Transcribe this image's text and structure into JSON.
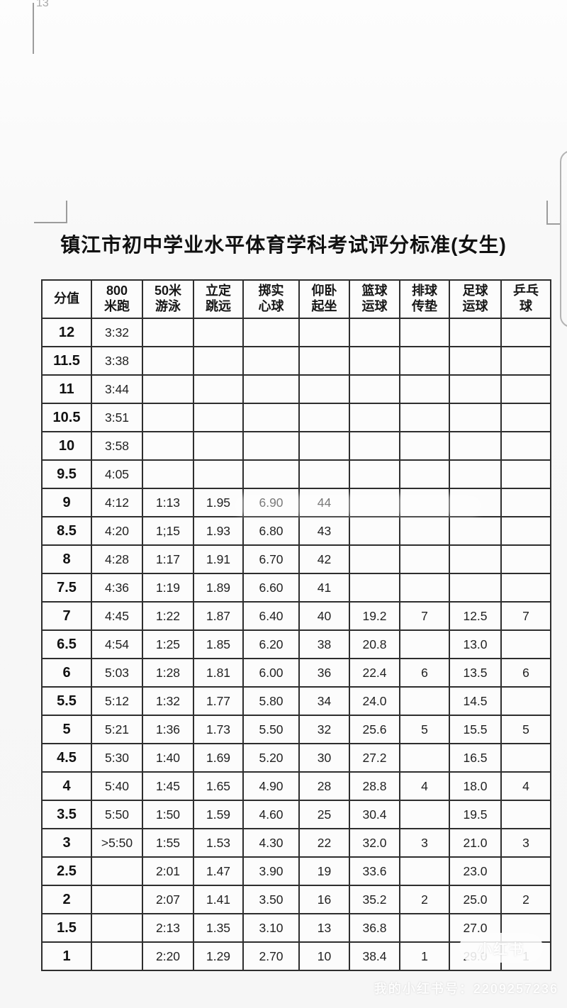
{
  "page": {
    "corner_label": "13",
    "title": "镇江市初中学业水平体育学科考试评分标准(女生)"
  },
  "table": {
    "columns": [
      "分值",
      "800\n米跑",
      "50米\n游泳",
      "立定\n跳远",
      "掷实\n心球",
      "仰卧\n起坐",
      "篮球\n运球",
      "排球\n传垫",
      "足球\n运球",
      "乒乓\n球"
    ],
    "rows": [
      [
        "12",
        "3:32",
        "",
        "",
        "",
        "",
        "",
        "",
        "",
        ""
      ],
      [
        "11.5",
        "3:38",
        "",
        "",
        "",
        "",
        "",
        "",
        "",
        ""
      ],
      [
        "11",
        "3:44",
        "",
        "",
        "",
        "",
        "",
        "",
        "",
        ""
      ],
      [
        "10.5",
        "3:51",
        "",
        "",
        "",
        "",
        "",
        "",
        "",
        ""
      ],
      [
        "10",
        "3:58",
        "",
        "",
        "",
        "",
        "",
        "",
        "",
        ""
      ],
      [
        "9.5",
        "4:05",
        "",
        "",
        "",
        "",
        "",
        "",
        "",
        ""
      ],
      [
        "9",
        "4:12",
        "1:13",
        "1.95",
        "6.90",
        "44",
        "",
        "",
        "",
        ""
      ],
      [
        "8.5",
        "4:20",
        "1;15",
        "1.93",
        "6.80",
        "43",
        "",
        "",
        "",
        ""
      ],
      [
        "8",
        "4:28",
        "1:17",
        "1.91",
        "6.70",
        "42",
        "",
        "",
        "",
        ""
      ],
      [
        "7.5",
        "4:36",
        "1:19",
        "1.89",
        "6.60",
        "41",
        "",
        "",
        "",
        ""
      ],
      [
        "7",
        "4:45",
        "1:22",
        "1.87",
        "6.40",
        "40",
        "19.2",
        "7",
        "12.5",
        "7"
      ],
      [
        "6.5",
        "4:54",
        "1:25",
        "1.85",
        "6.20",
        "38",
        "20.8",
        "",
        "13.0",
        ""
      ],
      [
        "6",
        "5:03",
        "1:28",
        "1.81",
        "6.00",
        "36",
        "22.4",
        "6",
        "13.5",
        "6"
      ],
      [
        "5.5",
        "5:12",
        "1:32",
        "1.77",
        "5.80",
        "34",
        "24.0",
        "",
        "14.5",
        ""
      ],
      [
        "5",
        "5:21",
        "1:36",
        "1.73",
        "5.50",
        "32",
        "25.6",
        "5",
        "15.5",
        "5"
      ],
      [
        "4.5",
        "5:30",
        "1:40",
        "1.69",
        "5.20",
        "30",
        "27.2",
        "",
        "16.5",
        ""
      ],
      [
        "4",
        "5:40",
        "1:45",
        "1.65",
        "4.90",
        "28",
        "28.8",
        "4",
        "18.0",
        "4"
      ],
      [
        "3.5",
        "5:50",
        "1:50",
        "1.59",
        "4.60",
        "25",
        "30.4",
        "",
        "19.5",
        ""
      ],
      [
        "3",
        ">5:50",
        "1:55",
        "1.53",
        "4.30",
        "22",
        "32.0",
        "3",
        "21.0",
        "3"
      ],
      [
        "2.5",
        "",
        "2:01",
        "1.47",
        "3.90",
        "19",
        "33.6",
        "",
        "23.0",
        ""
      ],
      [
        "2",
        "",
        "2:07",
        "1.41",
        "3.50",
        "16",
        "35.2",
        "2",
        "25.0",
        "2"
      ],
      [
        "1.5",
        "",
        "2:13",
        "1.35",
        "3.10",
        "13",
        "36.8",
        "",
        "27.0",
        ""
      ],
      [
        "1",
        "",
        "2:20",
        "1.29",
        "2.70",
        "10",
        "38.4",
        "1",
        "29.0",
        "1"
      ]
    ]
  },
  "watermark": {
    "badge": "小红书",
    "footer": "我的小红书号：2209257236"
  },
  "colors": {
    "table_border": "#2e2e2e",
    "text": "#1c1c1c",
    "page_bg": "#f8f8f8",
    "mark_gray": "#9c9c9c"
  }
}
